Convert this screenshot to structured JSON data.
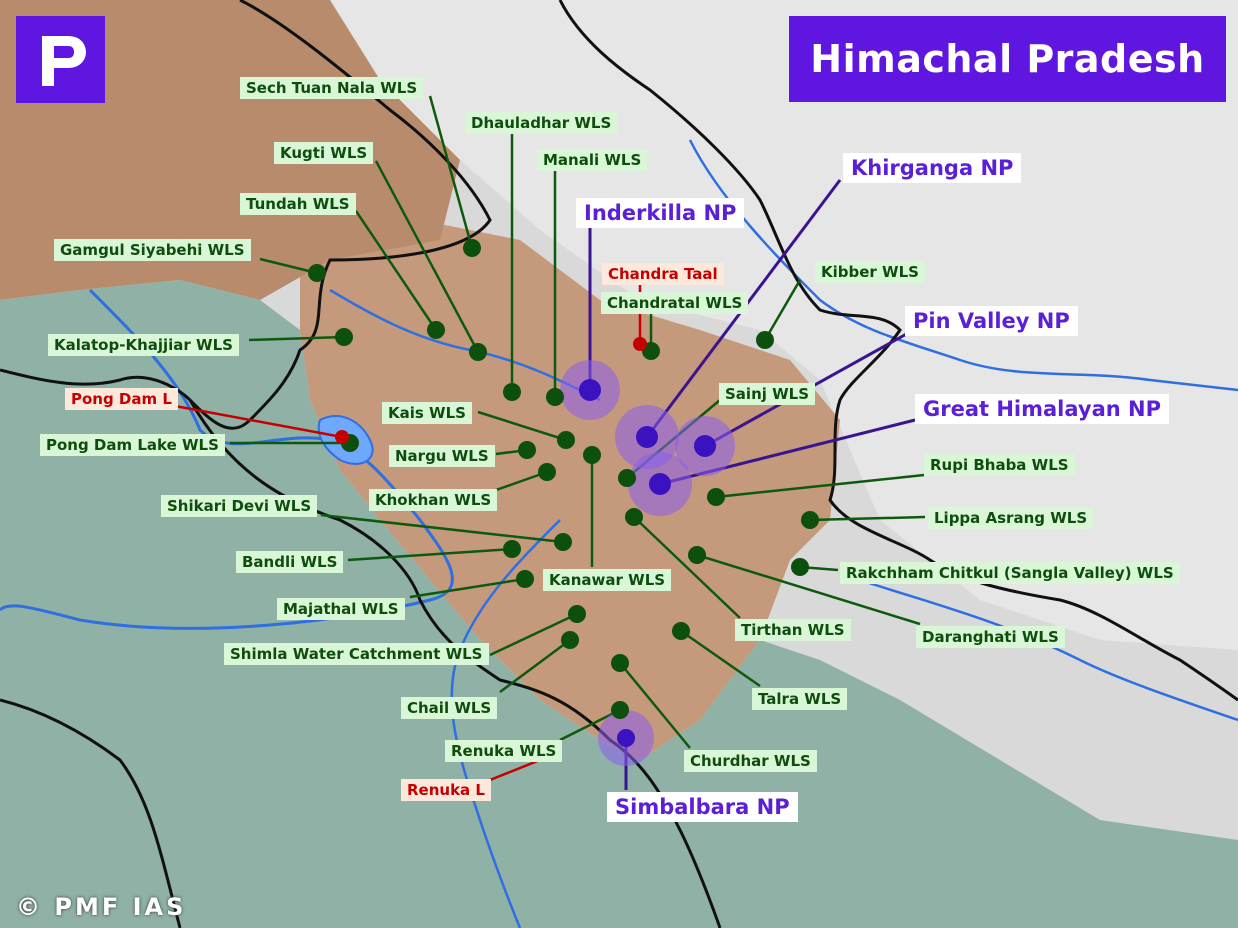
{
  "title": "Himachal Pradesh",
  "credit": "© PMF IAS",
  "colors": {
    "np": "#5a1fd6",
    "wls": "#0e4d0e",
    "lake": "#c40000",
    "brand": "#5e16e0"
  },
  "national_parks": [
    "Khirganga NP",
    "Inderkilla NP",
    "Pin Valley NP",
    "Great Himalayan NP",
    "Simbalbara NP"
  ],
  "wildlife_sanctuaries": [
    "Sech Tuan Nala WLS",
    "Dhauladhar WLS",
    "Kugti WLS",
    "Manali WLS",
    "Tundah WLS",
    "Gamgul Siyabehi WLS",
    "Kibber WLS",
    "Chandratal WLS",
    "Kalatop-Khajjiar WLS",
    "Sainj WLS",
    "Kais WLS",
    "Pong Dam Lake WLS",
    "Nargu WLS",
    "Rupi Bhaba WLS",
    "Khokhan WLS",
    "Shikari Devi WLS",
    "Lippa Asrang WLS",
    "Bandli WLS",
    "Rakchham Chitkul (Sangla Valley) WLS",
    "Kanawar WLS",
    "Majathal WLS",
    "Tirthan WLS",
    "Daranghati WLS",
    "Shimla Water Catchment WLS",
    "Talra WLS",
    "Chail WLS",
    "Renuka WLS",
    "Churdhar WLS"
  ],
  "lakes": [
    "Chandra Taal",
    "Pong Dam L",
    "Renuka L"
  ]
}
